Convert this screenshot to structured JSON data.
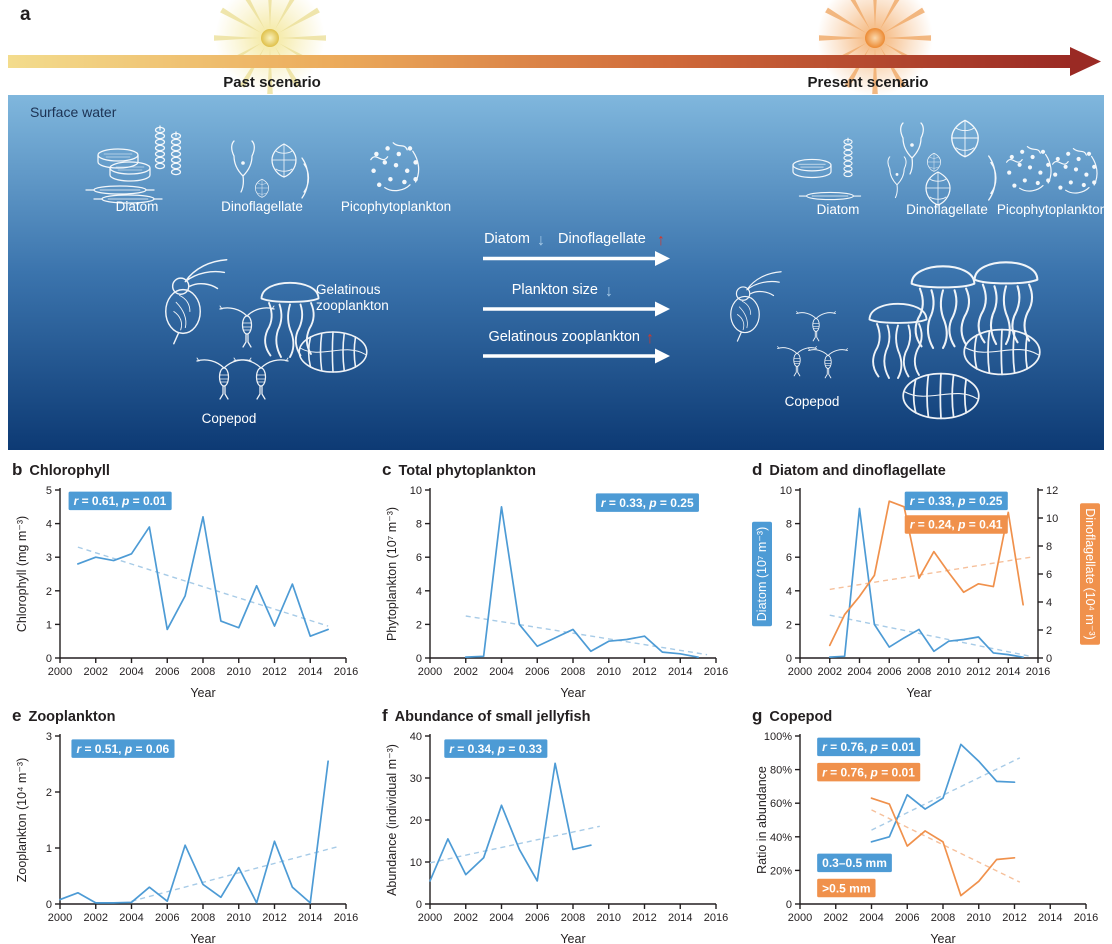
{
  "colors": {
    "blue": "#4d9bd5",
    "orange": "#f0914c",
    "trend_blue": "#a7cbe7",
    "trend_orange": "#f6c09b",
    "red_arrow": "#d3372b",
    "down_arrow_blue": "#a9cce8",
    "text": "#231f20"
  },
  "glyphs": {
    "down": "↓",
    "up": "↑"
  },
  "panel_a": {
    "label": "a",
    "past_scenario": "Past scenario",
    "present_scenario": "Present scenario",
    "surface_water": "Surface water",
    "organisms_past": [
      "Diatom",
      "Dinoflagellate",
      "Picophytoplankton"
    ],
    "organisms_present": [
      "Diatom",
      "Dinoflagellate",
      "Picophytoplankton"
    ],
    "gelatinous_line1": "Gelatinous",
    "gelatinous_line2": "zooplankton",
    "copepod_past": "Copepod",
    "copepod_present": "Copepod",
    "transitions": [
      {
        "a": "Diatom",
        "a_dir": "down",
        "b": "Dinoflagellate",
        "b_dir": "up"
      },
      {
        "a": "Plankton size",
        "a_dir": "down"
      },
      {
        "a": "Gelatinous zooplankton",
        "a_dir": "up"
      }
    ]
  },
  "chart_data": [
    {
      "type": "line",
      "panel_letter": "b",
      "title": "Chlorophyll",
      "xlabel": "Year",
      "ylabel": "Chlorophyll (mg m⁻³)",
      "xlim": [
        2000,
        2016
      ],
      "xticks": [
        2000,
        2002,
        2004,
        2006,
        2008,
        2010,
        2012,
        2014,
        2016
      ],
      "ylim": [
        0,
        5
      ],
      "yticks": [
        0,
        1,
        2,
        3,
        4,
        5
      ],
      "badges": [
        {
          "r": "0.61",
          "p": "0.01",
          "color": "blue",
          "fx": 0.03,
          "fy": 0.01
        }
      ],
      "series": [
        {
          "name": "Chlorophyll",
          "color": "blue",
          "x": [
            2001,
            2002,
            2003,
            2004,
            2005,
            2006,
            2007,
            2008,
            2009,
            2010,
            2011,
            2012,
            2013,
            2014,
            2015
          ],
          "values": [
            2.8,
            3.0,
            2.9,
            3.1,
            3.9,
            0.85,
            1.85,
            4.2,
            1.1,
            0.9,
            2.15,
            0.95,
            2.2,
            0.65,
            0.85
          ]
        }
      ],
      "trends": [
        {
          "color": "blue",
          "x1": 2001,
          "y1": 3.3,
          "x2": 2015,
          "y2": 0.95
        }
      ]
    },
    {
      "type": "line",
      "panel_letter": "c",
      "title": "Total phytoplankton",
      "xlabel": "Year",
      "ylabel": "Phytoplankton (10⁷ m⁻³)",
      "xlim": [
        2000,
        2016
      ],
      "xticks": [
        2000,
        2002,
        2004,
        2006,
        2008,
        2010,
        2012,
        2014,
        2016
      ],
      "ylim": [
        0,
        10
      ],
      "yticks": [
        0,
        2,
        4,
        6,
        8,
        10
      ],
      "badges": [
        {
          "r": "0.33",
          "p": "0.25",
          "color": "blue",
          "fx": 0.58,
          "fy": 0.02
        }
      ],
      "series": [
        {
          "name": "Phytoplankton",
          "color": "blue",
          "x": [
            2002,
            2003,
            2004,
            2005,
            2006,
            2007,
            2008,
            2009,
            2010,
            2011,
            2012,
            2013,
            2014,
            2015
          ],
          "values": [
            0.05,
            0.1,
            9.0,
            2.0,
            0.7,
            1.2,
            1.7,
            0.4,
            1.0,
            1.1,
            1.3,
            0.35,
            0.25,
            0.05
          ]
        }
      ],
      "trends": [
        {
          "color": "blue",
          "x1": 2002,
          "y1": 2.5,
          "x2": 2015.5,
          "y2": 0.2
        }
      ]
    },
    {
      "type": "line",
      "panel_letter": "d",
      "title": "Diatom and dinoflagellate",
      "xlabel": "Year",
      "ylabel": "Diatom (10⁷ m⁻³)",
      "ylabel_badge": "blue",
      "y2label": "Dinoflagellate (10⁴ m⁻³)",
      "y2label_badge": "orange",
      "xlim": [
        2000,
        2016
      ],
      "xticks": [
        2000,
        2002,
        2004,
        2006,
        2008,
        2010,
        2012,
        2014,
        2016
      ],
      "ylim": [
        0,
        10
      ],
      "yticks": [
        0,
        2,
        4,
        6,
        8,
        10
      ],
      "y2lim": [
        0,
        12
      ],
      "y2ticks": [
        0,
        2,
        4,
        6,
        8,
        10,
        12
      ],
      "badges": [
        {
          "r": "0.33",
          "p": "0.25",
          "color": "blue",
          "fx": 0.44,
          "fy": 0.01
        },
        {
          "r": "0.24",
          "p": "0.41",
          "color": "orange",
          "fx": 0.44,
          "fy": 0.15
        }
      ],
      "series": [
        {
          "name": "Diatom",
          "color": "blue",
          "x": [
            2002,
            2003,
            2004,
            2005,
            2006,
            2007,
            2008,
            2009,
            2010,
            2011,
            2012,
            2013,
            2014,
            2015
          ],
          "values": [
            0.05,
            0.1,
            8.9,
            2.0,
            0.65,
            1.2,
            1.7,
            0.4,
            1.0,
            1.1,
            1.25,
            0.3,
            0.2,
            0.05
          ]
        },
        {
          "name": "Dinoflagellate",
          "color": "orange",
          "axis": "y2",
          "x": [
            2002,
            2003,
            2004,
            2005,
            2006,
            2007,
            2008,
            2009,
            2010,
            2011,
            2012,
            2013,
            2014,
            2015
          ],
          "values": [
            0.9,
            3.1,
            4.4,
            5.9,
            11.2,
            10.8,
            5.7,
            7.6,
            6.1,
            4.7,
            5.3,
            5.1,
            10.4,
            3.8
          ]
        }
      ],
      "trends": [
        {
          "color": "blue",
          "x1": 2002,
          "y1": 2.55,
          "x2": 2015.5,
          "y2": 0.1
        },
        {
          "color": "orange",
          "axis": "y2",
          "x1": 2002,
          "y1": 4.9,
          "x2": 2015.5,
          "y2": 7.2
        }
      ]
    },
    {
      "type": "line",
      "panel_letter": "e",
      "title": "Zooplankton",
      "xlabel": "Year",
      "ylabel": "Zooplankton (10⁴ m⁻³)",
      "xlim": [
        2000,
        2016
      ],
      "xticks": [
        2000,
        2002,
        2004,
        2006,
        2008,
        2010,
        2012,
        2014,
        2016
      ],
      "ylim": [
        0,
        3
      ],
      "yticks": [
        0,
        1,
        2,
        3
      ],
      "badges": [
        {
          "r": "0.51",
          "p": "0.06",
          "color": "blue",
          "fx": 0.04,
          "fy": 0.02
        }
      ],
      "series": [
        {
          "name": "Zooplankton",
          "color": "blue",
          "x": [
            2000,
            2001,
            2002,
            2003,
            2004,
            2005,
            2006,
            2007,
            2008,
            2009,
            2010,
            2011,
            2012,
            2013,
            2014,
            2015
          ],
          "values": [
            0.08,
            0.2,
            0.02,
            0.02,
            0.03,
            0.3,
            0.05,
            1.05,
            0.35,
            0.12,
            0.65,
            0.02,
            1.12,
            0.3,
            0.02,
            2.55
          ]
        }
      ],
      "trends": [
        {
          "color": "blue",
          "x1": 2004,
          "y1": 0.05,
          "x2": 2015.5,
          "y2": 1.02
        }
      ]
    },
    {
      "type": "line",
      "panel_letter": "f",
      "title": "Abundance of small jellyfish",
      "xlabel": "Year",
      "ylabel": "Abundance (individual m⁻³)",
      "xlim": [
        2000,
        2016
      ],
      "xticks": [
        2000,
        2002,
        2004,
        2006,
        2008,
        2010,
        2012,
        2014,
        2016
      ],
      "ylim": [
        0,
        40
      ],
      "yticks": [
        0,
        10,
        20,
        30,
        40
      ],
      "badges": [
        {
          "r": "0.34",
          "p": "0.33",
          "color": "blue",
          "fx": 0.05,
          "fy": 0.02
        }
      ],
      "series": [
        {
          "name": "Small jellyfish",
          "color": "blue",
          "x": [
            2000,
            2001,
            2002,
            2003,
            2004,
            2005,
            2006,
            2007,
            2008,
            2009
          ],
          "values": [
            5.5,
            15.5,
            7,
            11,
            23.5,
            13,
            5.5,
            33.5,
            13,
            14
          ]
        }
      ],
      "trends": [
        {
          "color": "blue",
          "x1": 2000,
          "y1": 9.8,
          "x2": 2009.5,
          "y2": 18.5
        }
      ]
    },
    {
      "type": "line",
      "panel_letter": "g",
      "title": "Copepod",
      "xlabel": "Year",
      "ylabel": "Ratio in abundance",
      "xlim": [
        2000,
        2016
      ],
      "xticks": [
        2000,
        2002,
        2004,
        2006,
        2008,
        2010,
        2012,
        2014,
        2016
      ],
      "ylim": [
        0,
        100
      ],
      "yticks": [
        0,
        20,
        40,
        60,
        80,
        100
      ],
      "yticklabels": [
        "0",
        "20%",
        "40%",
        "60%",
        "80%",
        "100%"
      ],
      "badges": [
        {
          "r": "0.76",
          "p": "0.01",
          "color": "blue",
          "fx": 0.06,
          "fy": 0.01
        },
        {
          "r": "0.76",
          "p": "0.01",
          "color": "orange",
          "fx": 0.06,
          "fy": 0.16
        },
        {
          "label": "0.3–0.5 mm",
          "color": "blue",
          "fx": 0.06,
          "fy": 0.7
        },
        {
          "label": ">0.5 mm",
          "color": "orange",
          "fx": 0.06,
          "fy": 0.85
        }
      ],
      "series": [
        {
          "name": "0.3-0.5 mm",
          "color": "blue",
          "x": [
            2004,
            2005,
            2006,
            2007,
            2008,
            2009,
            2010,
            2011,
            2012
          ],
          "values": [
            37,
            40,
            65,
            56.5,
            63,
            95,
            85,
            73,
            72.5
          ]
        },
        {
          "name": ">0.5 mm",
          "color": "orange",
          "x": [
            2004,
            2005,
            2006,
            2007,
            2008,
            2009,
            2010,
            2011,
            2012
          ],
          "values": [
            63,
            59.5,
            34.5,
            43.5,
            37,
            5,
            13.5,
            26.5,
            27.5
          ]
        }
      ],
      "trends": [
        {
          "color": "blue",
          "x1": 2004,
          "y1": 44,
          "x2": 2012.3,
          "y2": 87
        },
        {
          "color": "orange",
          "x1": 2004,
          "y1": 56,
          "x2": 2012.3,
          "y2": 13
        }
      ]
    }
  ]
}
